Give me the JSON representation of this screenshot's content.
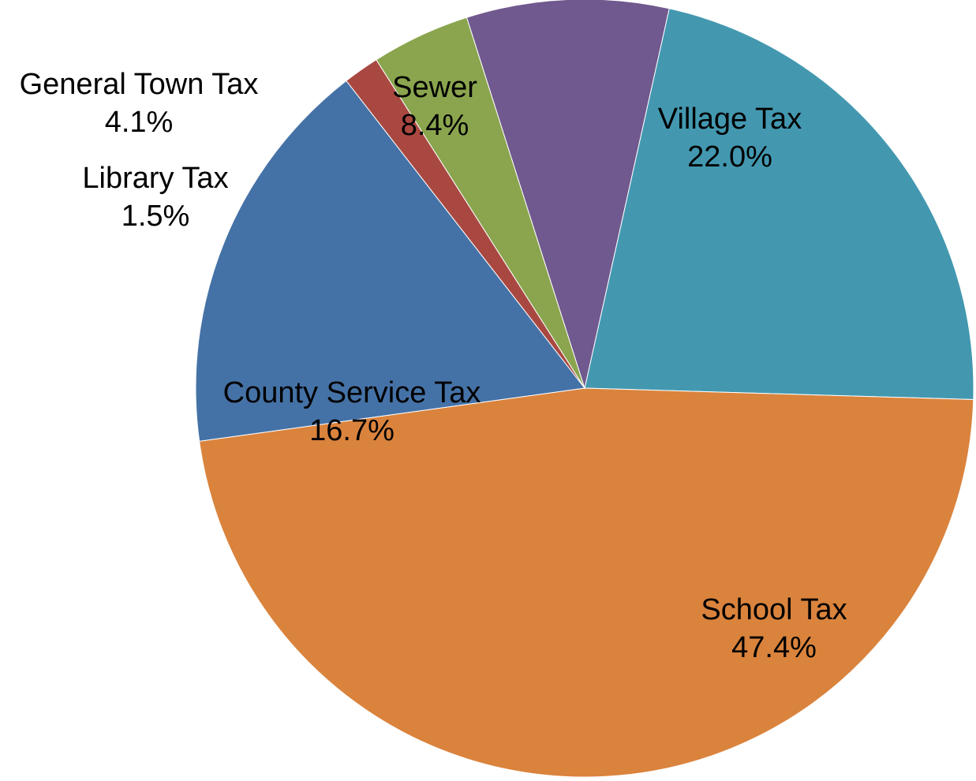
{
  "chart_data": {
    "type": "pie",
    "title": "",
    "start_angle_deg": 12.56,
    "direction": "clockwise",
    "slices": [
      {
        "label": "Village Tax",
        "value": 22.0,
        "value_label": "22.0%",
        "color": "#4398B0"
      },
      {
        "label": "School Tax",
        "value": 47.4,
        "value_label": "47.4%",
        "color": "#DA833D"
      },
      {
        "label": "County Service Tax",
        "value": 16.7,
        "value_label": "16.7%",
        "color": "#4572A6"
      },
      {
        "label": "Library Tax",
        "value": 1.5,
        "value_label": "1.5%",
        "color": "#A84841"
      },
      {
        "label": "General Town Tax",
        "value": 4.1,
        "value_label": "4.1%",
        "color": "#8AA54E"
      },
      {
        "label": "Sewer",
        "value": 8.4,
        "value_label": "8.4%",
        "color": "#70598E"
      }
    ]
  }
}
